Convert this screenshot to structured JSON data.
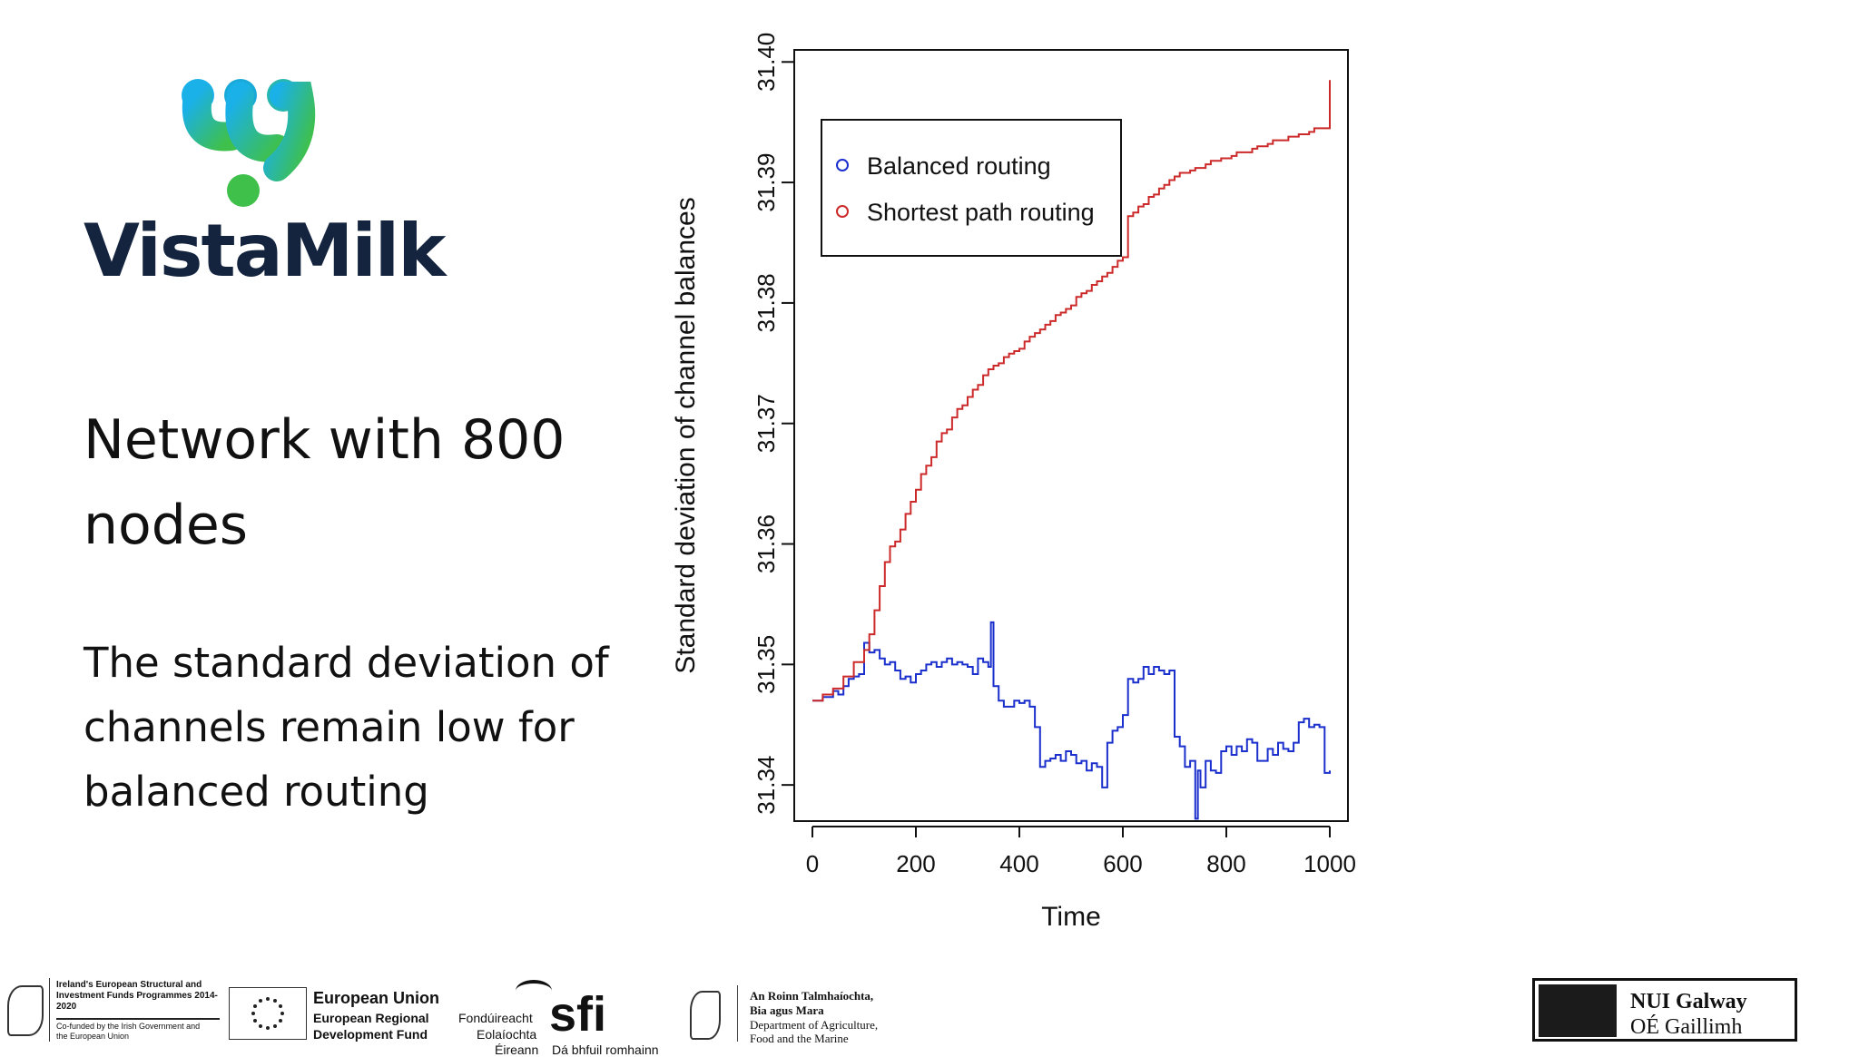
{
  "logo": {
    "text": "VistaMilk"
  },
  "slide": {
    "title": "Network with 800 nodes",
    "body": "The standard deviation of channels remain low for balanced routing"
  },
  "chart_data": {
    "type": "line",
    "title": "",
    "xlabel": "Time",
    "ylabel": "Standard deviation of channel balances",
    "xlim": [
      0,
      1000
    ],
    "ylim": [
      31.337,
      31.401
    ],
    "xticks": [
      0,
      200,
      400,
      600,
      800,
      1000
    ],
    "yticks": [
      "31.34",
      "31.35",
      "31.36",
      "31.37",
      "31.38",
      "31.39",
      "31.40"
    ],
    "legend_position": "top-left",
    "series": [
      {
        "name": "Balanced routing",
        "color": "#1a2fcc",
        "x": [
          0,
          20,
          40,
          50,
          60,
          70,
          80,
          90,
          100,
          110,
          120,
          130,
          140,
          150,
          160,
          170,
          180,
          190,
          200,
          210,
          220,
          230,
          240,
          250,
          260,
          270,
          280,
          290,
          300,
          310,
          320,
          330,
          340,
          345,
          350,
          360,
          370,
          380,
          390,
          400,
          410,
          420,
          430,
          440,
          450,
          460,
          470,
          480,
          490,
          500,
          510,
          520,
          530,
          540,
          550,
          560,
          570,
          580,
          590,
          600,
          610,
          620,
          630,
          640,
          650,
          660,
          670,
          680,
          690,
          700,
          710,
          720,
          730,
          740,
          745,
          750,
          760,
          770,
          780,
          790,
          800,
          810,
          820,
          830,
          840,
          850,
          860,
          870,
          880,
          890,
          900,
          910,
          920,
          930,
          940,
          950,
          960,
          970,
          980,
          990,
          1000
        ],
        "y": [
          31.347,
          31.3473,
          31.3478,
          31.3475,
          31.3482,
          31.3488,
          31.349,
          31.3492,
          31.3518,
          31.351,
          31.3512,
          31.3505,
          31.35,
          31.3502,
          31.3495,
          31.3488,
          31.349,
          31.3485,
          31.3492,
          31.3495,
          31.35,
          31.3502,
          31.3498,
          31.3502,
          31.3505,
          31.35,
          31.3502,
          31.35,
          31.3498,
          31.3492,
          31.3505,
          31.3502,
          31.3498,
          31.3535,
          31.3482,
          31.347,
          31.3465,
          31.3465,
          31.347,
          31.3468,
          31.347,
          31.3465,
          31.3448,
          31.3415,
          31.342,
          31.3422,
          31.3425,
          31.342,
          31.3428,
          31.3425,
          31.3418,
          31.342,
          31.3412,
          31.3418,
          31.3415,
          31.3398,
          31.3435,
          31.3445,
          31.3448,
          31.3458,
          31.3488,
          31.3485,
          31.3488,
          31.3498,
          31.3492,
          31.3498,
          31.3495,
          31.3492,
          31.3495,
          31.344,
          31.3432,
          31.3415,
          31.342,
          31.3372,
          31.3412,
          31.3398,
          31.342,
          31.3412,
          31.341,
          31.3428,
          31.3432,
          31.3425,
          31.3432,
          31.3428,
          31.3438,
          31.3435,
          31.342,
          31.342,
          31.343,
          31.3425,
          31.3435,
          31.343,
          31.3428,
          31.3435,
          31.3452,
          31.3455,
          31.3448,
          31.345,
          31.3448,
          31.341,
          31.3412
        ]
      },
      {
        "name": "Shortest path routing",
        "color": "#cc2a2a",
        "x": [
          0,
          20,
          40,
          60,
          80,
          100,
          110,
          120,
          130,
          140,
          150,
          160,
          170,
          180,
          190,
          200,
          210,
          220,
          230,
          240,
          250,
          260,
          270,
          280,
          290,
          300,
          310,
          320,
          330,
          340,
          350,
          360,
          370,
          380,
          390,
          400,
          410,
          420,
          430,
          440,
          450,
          460,
          470,
          480,
          490,
          500,
          510,
          520,
          530,
          540,
          550,
          560,
          570,
          580,
          590,
          600,
          610,
          620,
          630,
          640,
          650,
          660,
          670,
          680,
          690,
          700,
          710,
          720,
          730,
          740,
          750,
          760,
          770,
          780,
          790,
          800,
          810,
          820,
          830,
          840,
          850,
          860,
          870,
          880,
          890,
          900,
          910,
          920,
          930,
          940,
          950,
          960,
          970,
          980,
          990,
          995,
          1000
        ],
        "y": [
          31.347,
          31.3475,
          31.348,
          31.349,
          31.3502,
          31.3512,
          31.3525,
          31.3545,
          31.3565,
          31.3585,
          31.3598,
          31.3602,
          31.3612,
          31.3625,
          31.3635,
          31.3645,
          31.3658,
          31.3665,
          31.3672,
          31.3685,
          31.3692,
          31.3695,
          31.3705,
          31.3712,
          31.3715,
          31.3722,
          31.3728,
          31.3732,
          31.374,
          31.3745,
          31.3748,
          31.375,
          31.3755,
          31.3758,
          31.376,
          31.3762,
          31.3768,
          31.3772,
          31.3775,
          31.3778,
          31.3782,
          31.3785,
          31.379,
          31.3792,
          31.3795,
          31.3798,
          31.3805,
          31.3808,
          31.381,
          31.3815,
          31.3818,
          31.3822,
          31.3825,
          31.383,
          31.3835,
          31.3838,
          31.3872,
          31.3875,
          31.388,
          31.3882,
          31.3888,
          31.389,
          31.3895,
          31.3898,
          31.3902,
          31.3905,
          31.3908,
          31.3908,
          31.391,
          31.3912,
          31.3912,
          31.3915,
          31.3918,
          31.3918,
          31.392,
          31.392,
          31.3922,
          31.3925,
          31.3925,
          31.3925,
          31.3928,
          31.393,
          31.393,
          31.3932,
          31.3935,
          31.3935,
          31.3935,
          31.3938,
          31.3938,
          31.394,
          31.394,
          31.3942,
          31.3945,
          31.3945,
          31.3945,
          31.3945,
          31.3985
        ]
      }
    ]
  },
  "footer": {
    "esif_text": "Ireland's European Structural and Investment Funds Programmes 2014-2020",
    "esif_sub": "Co-funded by the Irish Government and the European Union",
    "eu_title": "European Union",
    "eu_sub1": "European Regional",
    "eu_sub2": "Development Fund",
    "sfi_line1": "Fondúireacht",
    "sfi_line2": "Eolaíochta",
    "sfi_line3": "Éireann",
    "sfi_mark": "sfi",
    "sfi_tag": "Dá bhfuil romhainn",
    "agri_line1": "An Roinn Talmhaíochta,",
    "agri_line2": "Bia agus Mara",
    "agri_line3": "Department of Agriculture,",
    "agri_line4": "Food and the Marine",
    "nui_line1": "NUI Galway",
    "nui_line2": "OÉ Gaillimh"
  }
}
